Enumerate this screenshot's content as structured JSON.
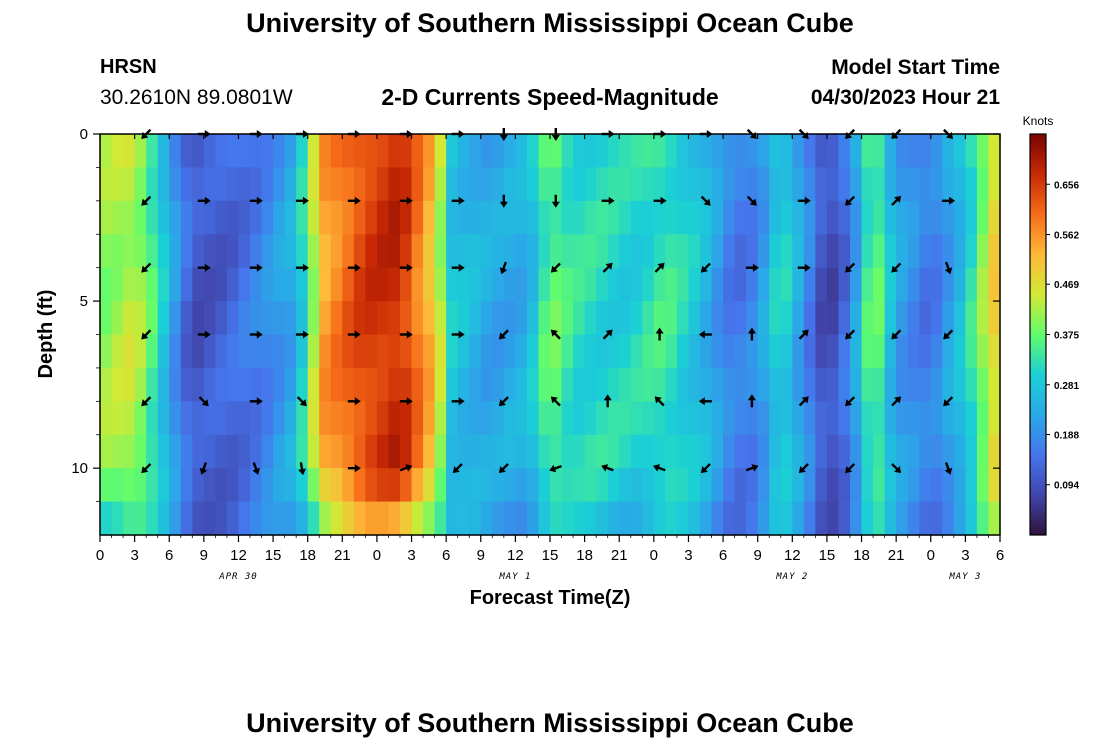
{
  "header": {
    "title": "University of Southern Mississippi Ocean Cube",
    "station_id": "HRSN",
    "coords": "30.2610N  89.0801W",
    "subtitle": "2-D Currents Speed-Magnitude",
    "model_label": "Model Start Time",
    "model_value": "04/30/2023 Hour 21"
  },
  "footer": {
    "title": "University of Southern Mississippi Ocean Cube"
  },
  "chart_data": {
    "type": "heatmap",
    "title": "2-D Currents Speed-Magnitude",
    "xlabel": "Forecast Time(Z)",
    "ylabel": "Depth (ft)",
    "x_range": [
      0,
      78
    ],
    "y_range": [
      0,
      12
    ],
    "x_ticks": [
      "0",
      "3",
      "6",
      "9",
      "12",
      "15",
      "18",
      "21",
      "0",
      "3",
      "6",
      "9",
      "12",
      "15",
      "18",
      "21",
      "0",
      "3",
      "6",
      "9",
      "12",
      "15",
      "18",
      "21",
      "0",
      "3",
      "6"
    ],
    "y_ticks": [
      "0",
      "5",
      "10"
    ],
    "date_labels": [
      {
        "label": "APR 30",
        "hour": 12
      },
      {
        "label": "MAY 1",
        "hour": 36
      },
      {
        "label": "MAY 2",
        "hour": 60
      },
      {
        "label": "MAY 3",
        "hour": 75
      }
    ],
    "colorbar": {
      "title": "Knots",
      "min": 0.0,
      "max": 0.75,
      "ticks": [
        "0.094",
        "0.188",
        "0.281",
        "0.375",
        "0.469",
        "0.562",
        "0.656"
      ]
    },
    "depths": [
      0,
      1,
      2,
      3,
      4,
      5,
      6,
      7,
      8,
      9,
      10,
      11,
      12
    ],
    "speed_profile": [
      {
        "t": 0,
        "v": 0.4
      },
      {
        "t": 3,
        "v": 0.44
      },
      {
        "t": 5,
        "v": 0.32
      },
      {
        "t": 6.5,
        "v": 0.2
      },
      {
        "t": 8,
        "v": 0.1
      },
      {
        "t": 11,
        "v": 0.12
      },
      {
        "t": 14,
        "v": 0.17
      },
      {
        "t": 17,
        "v": 0.24
      },
      {
        "t": 19.5,
        "v": 0.55
      },
      {
        "t": 23,
        "v": 0.65
      },
      {
        "t": 26,
        "v": 0.68
      },
      {
        "t": 29,
        "v": 0.5
      },
      {
        "t": 30.5,
        "v": 0.28
      },
      {
        "t": 34,
        "v": 0.22
      },
      {
        "t": 37,
        "v": 0.24
      },
      {
        "t": 39,
        "v": 0.38
      },
      {
        "t": 41,
        "v": 0.32
      },
      {
        "t": 46,
        "v": 0.3
      },
      {
        "t": 49,
        "v": 0.34
      },
      {
        "t": 52,
        "v": 0.27
      },
      {
        "t": 55,
        "v": 0.15
      },
      {
        "t": 57,
        "v": 0.18
      },
      {
        "t": 59,
        "v": 0.32
      },
      {
        "t": 61,
        "v": 0.2
      },
      {
        "t": 63,
        "v": 0.07
      },
      {
        "t": 65,
        "v": 0.16
      },
      {
        "t": 67,
        "v": 0.4
      },
      {
        "t": 69,
        "v": 0.22
      },
      {
        "t": 72,
        "v": 0.15
      },
      {
        "t": 75,
        "v": 0.28
      },
      {
        "t": 78,
        "v": 0.52
      }
    ],
    "arrows": {
      "times": [
        4,
        9,
        13.5,
        17.5,
        22,
        26.5,
        31,
        35,
        39.5,
        44,
        48.5,
        52.5,
        56.5,
        61,
        65,
        69,
        73.5
      ],
      "depths": [
        0,
        2,
        4,
        6,
        8,
        10
      ],
      "directions_deg": [
        [
          225,
          90,
          90,
          90,
          90,
          90,
          90,
          180,
          180,
          90,
          90,
          90,
          135,
          135,
          225,
          225,
          135
        ],
        [
          225,
          90,
          90,
          90,
          90,
          90,
          90,
          180,
          180,
          90,
          90,
          135,
          135,
          90,
          225,
          45,
          90
        ],
        [
          225,
          90,
          90,
          90,
          90,
          90,
          90,
          200,
          225,
          45,
          45,
          225,
          90,
          90,
          225,
          225,
          160
        ],
        [
          225,
          90,
          90,
          90,
          90,
          90,
          90,
          225,
          315,
          45,
          0,
          270,
          0,
          45,
          225,
          225,
          225
        ],
        [
          225,
          135,
          90,
          135,
          90,
          90,
          90,
          225,
          315,
          0,
          315,
          270,
          0,
          45,
          225,
          45,
          225
        ],
        [
          225,
          200,
          160,
          170,
          90,
          70,
          225,
          225,
          250,
          290,
          290,
          225,
          70,
          225,
          225,
          135,
          160
        ]
      ]
    }
  }
}
